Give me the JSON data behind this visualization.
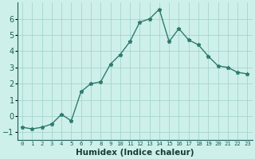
{
  "xlabel": "Humidex (Indice chaleur)",
  "x": [
    0,
    1,
    2,
    3,
    4,
    5,
    6,
    7,
    8,
    9,
    10,
    11,
    12,
    13,
    14,
    15,
    16,
    17,
    18,
    19,
    20,
    21,
    22,
    23
  ],
  "y": [
    -0.7,
    -0.8,
    -0.7,
    -0.5,
    0.1,
    -0.3,
    1.5,
    2.0,
    2.1,
    3.2,
    3.8,
    4.6,
    5.8,
    6.0,
    6.6,
    4.6,
    5.4,
    4.7,
    4.4,
    3.7,
    3.1,
    3.0,
    2.7,
    2.6
  ],
  "line_color": "#2e7b6e",
  "marker": "*",
  "marker_color": "#2e7b6e",
  "bg_color": "#cef0ea",
  "grid_color": "#9ecfc8",
  "tick_label_color": "#1a5c56",
  "axis_label_color": "#1a3c38",
  "ylim": [
    -1.5,
    7.0
  ],
  "xlim": [
    -0.5,
    23.5
  ],
  "yticks": [
    -1,
    0,
    1,
    2,
    3,
    4,
    5,
    6
  ],
  "xtick_labels": [
    "0",
    "1",
    "2",
    "3",
    "4",
    "5",
    "6",
    "7",
    "8",
    "9",
    "10",
    "11",
    "12",
    "13",
    "14",
    "15",
    "16",
    "17",
    "18",
    "19",
    "20",
    "21",
    "22",
    "23"
  ],
  "linewidth": 1.0,
  "markersize": 3.5,
  "xlabel_fontsize": 7.5,
  "ytick_fontsize": 7,
  "xtick_fontsize": 5.2
}
